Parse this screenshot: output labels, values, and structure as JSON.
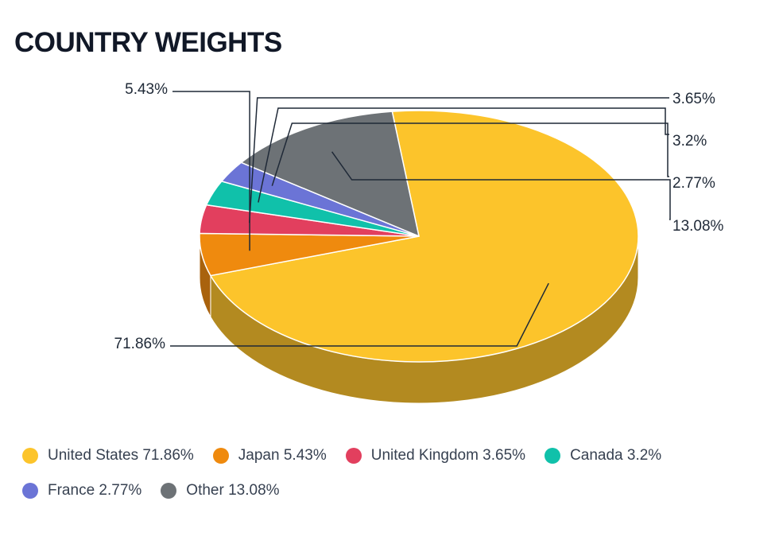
{
  "title": "COUNTRY WEIGHTS",
  "chart_data": {
    "type": "pie",
    "title": "COUNTRY WEIGHTS",
    "style": "3d",
    "legend_position": "bottom",
    "categories": [
      "United States",
      "Japan",
      "United Kingdom",
      "Canada",
      "France",
      "Other"
    ],
    "values": [
      71.86,
      5.43,
      3.65,
      3.2,
      2.77,
      13.08
    ],
    "data_labels": [
      "71.86%",
      "5.43%",
      "3.65%",
      "3.2%",
      "2.77%",
      "13.08%"
    ],
    "legend_entries": [
      "United States 71.86%",
      "Japan 5.43%",
      "United Kingdom 3.65%",
      "Canada 3.2%",
      "France 2.77%",
      "Other 13.08%"
    ],
    "colors": [
      "#fcc42b",
      "#ef8a0e",
      "#e23f5e",
      "#10c1aa",
      "#6b74d6",
      "#6d7276"
    ],
    "side_colors": [
      "#b38a20",
      "#a9620d",
      "#a12c43",
      "#0c8a79",
      "#4c529a",
      "#4d5154"
    ]
  }
}
